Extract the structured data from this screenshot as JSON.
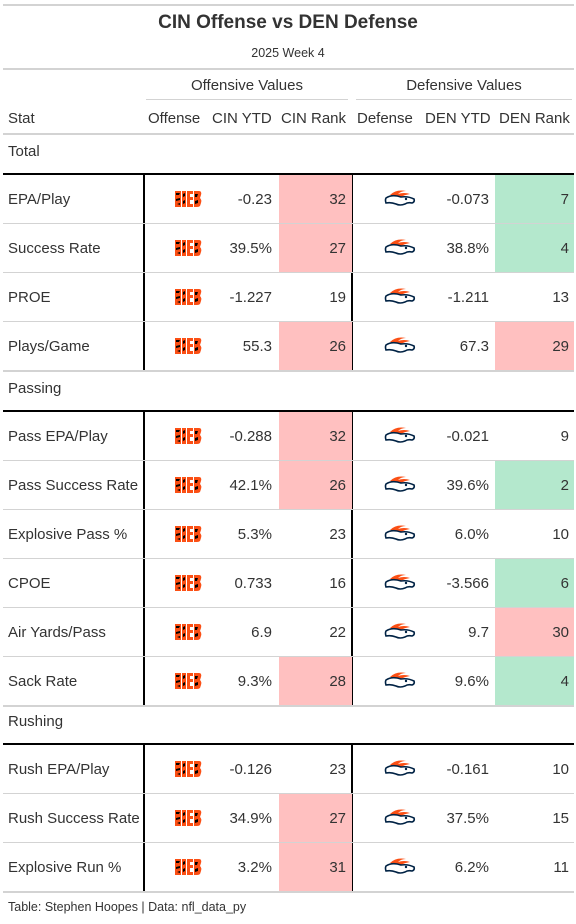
{
  "header": {
    "title": "CIN Offense vs DEN Defense",
    "subtitle": "2025 Week 4"
  },
  "spanners": {
    "offense": "Offensive Values",
    "defense": "Defensive Values"
  },
  "columns": {
    "stat": "Stat",
    "offense": "Offense",
    "off_ytd": "CIN YTD",
    "off_rank": "CIN Rank",
    "defense": "Defense",
    "def_ytd": "DEN YTD",
    "def_rank": "DEN Rank"
  },
  "colors": {
    "bad": "#ffc0c0",
    "good": "#b4e8cd",
    "bengals_orange": "#fb4f14",
    "broncos_orange": "#fb4f14",
    "broncos_navy": "#002244"
  },
  "icons": {
    "offense_logo": "bengals-logo-icon",
    "defense_logo": "broncos-logo-icon"
  },
  "groups": [
    {
      "label": "Total",
      "rows": [
        {
          "stat": "EPA/Play",
          "off_ytd": "-0.23",
          "off_rank": "32",
          "off_color": "bad",
          "def_ytd": "-0.073",
          "def_rank": "7",
          "def_color": "good"
        },
        {
          "stat": "Success Rate",
          "off_ytd": "39.5%",
          "off_rank": "27",
          "off_color": "bad",
          "def_ytd": "38.8%",
          "def_rank": "4",
          "def_color": "good"
        },
        {
          "stat": "PROE",
          "off_ytd": "-1.227",
          "off_rank": "19",
          "off_color": "",
          "def_ytd": "-1.211",
          "def_rank": "13",
          "def_color": ""
        },
        {
          "stat": "Plays/Game",
          "off_ytd": "55.3",
          "off_rank": "26",
          "off_color": "bad",
          "def_ytd": "67.3",
          "def_rank": "29",
          "def_color": "bad"
        }
      ]
    },
    {
      "label": "Passing",
      "rows": [
        {
          "stat": "Pass EPA/Play",
          "off_ytd": "-0.288",
          "off_rank": "32",
          "off_color": "bad",
          "def_ytd": "-0.021",
          "def_rank": "9",
          "def_color": ""
        },
        {
          "stat": "Pass Success Rate",
          "off_ytd": "42.1%",
          "off_rank": "26",
          "off_color": "bad",
          "def_ytd": "39.6%",
          "def_rank": "2",
          "def_color": "good"
        },
        {
          "stat": "Explosive Pass %",
          "off_ytd": "5.3%",
          "off_rank": "23",
          "off_color": "",
          "def_ytd": "6.0%",
          "def_rank": "10",
          "def_color": ""
        },
        {
          "stat": "CPOE",
          "off_ytd": "0.733",
          "off_rank": "16",
          "off_color": "",
          "def_ytd": "-3.566",
          "def_rank": "6",
          "def_color": "good"
        },
        {
          "stat": "Air Yards/Pass",
          "off_ytd": "6.9",
          "off_rank": "22",
          "off_color": "",
          "def_ytd": "9.7",
          "def_rank": "30",
          "def_color": "bad"
        },
        {
          "stat": "Sack Rate",
          "off_ytd": "9.3%",
          "off_rank": "28",
          "off_color": "bad",
          "def_ytd": "9.6%",
          "def_rank": "4",
          "def_color": "good"
        }
      ]
    },
    {
      "label": "Rushing",
      "rows": [
        {
          "stat": "Rush EPA/Play",
          "off_ytd": "-0.126",
          "off_rank": "23",
          "off_color": "",
          "def_ytd": "-0.161",
          "def_rank": "10",
          "def_color": ""
        },
        {
          "stat": "Rush Success Rate",
          "off_ytd": "34.9%",
          "off_rank": "27",
          "off_color": "bad",
          "def_ytd": "37.5%",
          "def_rank": "15",
          "def_color": ""
        },
        {
          "stat": "Explosive Run %",
          "off_ytd": "3.2%",
          "off_rank": "31",
          "off_color": "bad",
          "def_ytd": "6.2%",
          "def_rank": "11",
          "def_color": ""
        }
      ]
    }
  ],
  "footer": {
    "source": "Table: Stephen Hoopes | Data: nfl_data_py"
  }
}
